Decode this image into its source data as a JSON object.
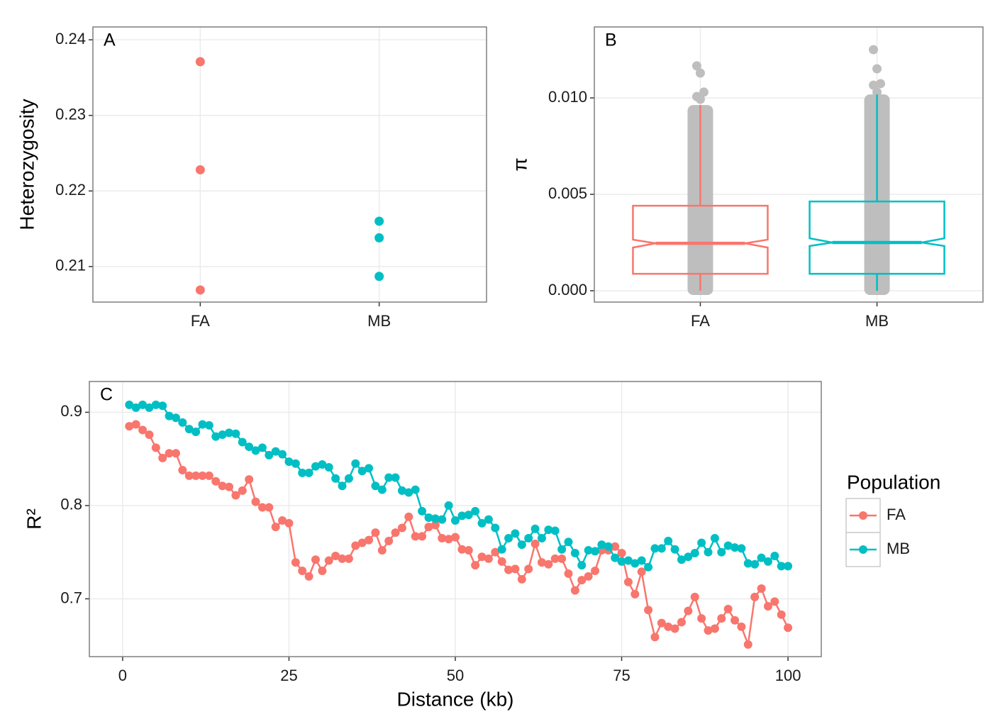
{
  "chart_data": [
    {
      "type": "strip",
      "panel_label": "A",
      "y_label": "Heterozygosity",
      "categories": [
        "FA",
        "MB"
      ],
      "colors": [
        "#f8766d",
        "#00bfc4"
      ],
      "values": [
        [
          0.2371,
          0.2228,
          0.2069
        ],
        [
          0.216,
          0.2138,
          0.2087
        ]
      ],
      "ylim": [
        0.2053,
        0.2417
      ],
      "yticks": [
        0.21,
        0.22,
        0.23,
        0.24
      ],
      "grid": true
    },
    {
      "type": "boxplot",
      "panel_label": "B",
      "y_label": "π",
      "categories": [
        "FA",
        "MB"
      ],
      "point_color": "#bebebe",
      "boxes": [
        {
          "color": "#f8766d",
          "whisker_low": 0,
          "q1": 0.00088,
          "median": 0.00246,
          "q3": 0.00441,
          "whisker_high": 0.00963,
          "notch": [
            0.00224,
            0.00265
          ],
          "outliers": [
            0.01166,
            0.01129,
            0.0103,
            0.01007,
            0.00993
          ]
        },
        {
          "color": "#00bfc4",
          "whisker_low": 0,
          "q1": 0.00088,
          "median": 0.0025,
          "q3": 0.00463,
          "whisker_high": 0.01018,
          "notch": [
            0.00232,
            0.00272
          ],
          "outliers": [
            0.0125,
            0.01151,
            0.01074,
            0.01066,
            0.0103
          ]
        }
      ],
      "ylim": [
        -0.000588,
        0.01368
      ],
      "yticks": [
        {
          "value": 0,
          "label": "0.000"
        },
        {
          "value": 0.005,
          "label": "0.005"
        },
        {
          "value": 0.01,
          "label": "0.010"
        }
      ],
      "grid": true
    },
    {
      "type": "line",
      "panel_label": "C",
      "x_label": "Distance (kb)",
      "y_label": "R²",
      "legend_title": "Population",
      "x": [
        1,
        2,
        3,
        4,
        5,
        6,
        7,
        8,
        9,
        10,
        11,
        12,
        13,
        14,
        15,
        16,
        17,
        18,
        19,
        20,
        21,
        22,
        23,
        24,
        25,
        26,
        27,
        28,
        29,
        30,
        31,
        32,
        33,
        34,
        35,
        36,
        37,
        38,
        39,
        40,
        41,
        42,
        43,
        44,
        45,
        46,
        47,
        48,
        49,
        50,
        51,
        52,
        53,
        54,
        55,
        56,
        57,
        58,
        59,
        60,
        61,
        62,
        63,
        64,
        65,
        66,
        67,
        68,
        69,
        70,
        71,
        72,
        73,
        74,
        75,
        76,
        77,
        78,
        79,
        80,
        81,
        82,
        83,
        84,
        85,
        86,
        87,
        88,
        89,
        90,
        91,
        92,
        93,
        94,
        95,
        96,
        97,
        98,
        99,
        100
      ],
      "series": [
        {
          "name": "FA",
          "color": "#f8766d",
          "values": [
            0.885,
            0.887,
            0.881,
            0.876,
            0.862,
            0.851,
            0.856,
            0.856,
            0.838,
            0.832,
            0.832,
            0.832,
            0.832,
            0.826,
            0.821,
            0.82,
            0.811,
            0.816,
            0.828,
            0.804,
            0.798,
            0.798,
            0.777,
            0.784,
            0.781,
            0.739,
            0.73,
            0.724,
            0.742,
            0.73,
            0.741,
            0.746,
            0.743,
            0.743,
            0.757,
            0.76,
            0.763,
            0.771,
            0.752,
            0.762,
            0.771,
            0.776,
            0.788,
            0.767,
            0.767,
            0.777,
            0.779,
            0.765,
            0.764,
            0.766,
            0.753,
            0.752,
            0.736,
            0.745,
            0.743,
            0.75,
            0.74,
            0.731,
            0.732,
            0.721,
            0.732,
            0.759,
            0.739,
            0.737,
            0.743,
            0.743,
            0.727,
            0.709,
            0.72,
            0.724,
            0.73,
            0.752,
            0.752,
            0.756,
            0.749,
            0.718,
            0.705,
            0.729,
            0.688,
            0.659,
            0.674,
            0.67,
            0.668,
            0.675,
            0.687,
            0.702,
            0.679,
            0.666,
            0.668,
            0.679,
            0.689,
            0.677,
            0.67,
            0.651,
            0.702,
            0.711,
            0.692,
            0.697,
            0.683,
            0.669
          ]
        },
        {
          "name": "MB",
          "color": "#00bfc4",
          "values": [
            0.908,
            0.905,
            0.908,
            0.905,
            0.908,
            0.907,
            0.896,
            0.894,
            0.889,
            0.882,
            0.879,
            0.887,
            0.886,
            0.874,
            0.876,
            0.878,
            0.877,
            0.868,
            0.863,
            0.859,
            0.862,
            0.854,
            0.858,
            0.855,
            0.847,
            0.845,
            0.835,
            0.835,
            0.842,
            0.844,
            0.841,
            0.829,
            0.821,
            0.829,
            0.845,
            0.837,
            0.84,
            0.821,
            0.817,
            0.83,
            0.83,
            0.816,
            0.814,
            0.817,
            0.794,
            0.787,
            0.786,
            0.785,
            0.8,
            0.784,
            0.789,
            0.79,
            0.794,
            0.781,
            0.785,
            0.776,
            0.753,
            0.765,
            0.77,
            0.758,
            0.765,
            0.775,
            0.765,
            0.774,
            0.773,
            0.753,
            0.761,
            0.749,
            0.736,
            0.752,
            0.751,
            0.758,
            0.756,
            0.744,
            0.74,
            0.741,
            0.738,
            0.741,
            0.734,
            0.754,
            0.754,
            0.762,
            0.753,
            0.742,
            0.745,
            0.749,
            0.76,
            0.75,
            0.765,
            0.75,
            0.757,
            0.755,
            0.754,
            0.738,
            0.737,
            0.744,
            0.74,
            0.746,
            0.735,
            0.735
          ]
        }
      ],
      "xlim": [
        -5,
        105
      ],
      "xticks": [
        0,
        25,
        50,
        75,
        100
      ],
      "ylim": [
        0.638,
        0.933
      ],
      "yticks": [
        0.7,
        0.8,
        0.9
      ],
      "grid": true
    }
  ]
}
